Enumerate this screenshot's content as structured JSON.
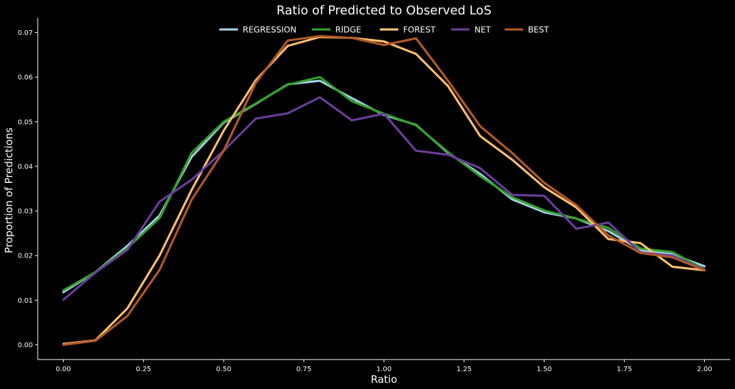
{
  "chart_data": {
    "type": "line",
    "title": "Ratio of Predicted to Observed LoS",
    "xlabel": "Ratio",
    "ylabel": "Proportion of Predictions",
    "xlim": [
      -0.08,
      2.08
    ],
    "ylim": [
      -0.0033,
      0.0733
    ],
    "xticks": [
      0.0,
      0.25,
      0.5,
      0.75,
      1.0,
      1.25,
      1.5,
      1.75,
      2.0
    ],
    "xtick_labels": [
      "0.00",
      "0.25",
      "0.50",
      "0.75",
      "1.00",
      "1.25",
      "1.50",
      "1.75",
      "2.00"
    ],
    "yticks": [
      0.0,
      0.01,
      0.02,
      0.03,
      0.04,
      0.05,
      0.06,
      0.07
    ],
    "ytick_labels": [
      "0.00",
      "0.01",
      "0.02",
      "0.03",
      "0.04",
      "0.05",
      "0.06",
      "0.07"
    ],
    "grid": false,
    "legend_position": "top-center",
    "x": [
      0.0,
      0.1,
      0.2,
      0.3,
      0.4,
      0.5,
      0.6,
      0.7,
      0.8,
      0.9,
      1.0,
      1.1,
      1.2,
      1.3,
      1.4,
      1.5,
      1.6,
      1.7,
      1.8,
      1.9,
      2.0
    ],
    "series": [
      {
        "name": "REGRESSION",
        "color": "#a6cee3",
        "values": [
          0.0118,
          0.0163,
          0.0222,
          0.029,
          0.0421,
          0.0498,
          0.054,
          0.0584,
          0.0592,
          0.0553,
          0.0515,
          0.0493,
          0.043,
          0.0383,
          0.0326,
          0.0297,
          0.0283,
          0.0255,
          0.0212,
          0.0203,
          0.0176
        ]
      },
      {
        "name": "RIDGE",
        "color": "#33a02c",
        "values": [
          0.0122,
          0.0163,
          0.0217,
          0.0284,
          0.043,
          0.05,
          0.0541,
          0.0583,
          0.06,
          0.0546,
          0.0518,
          0.0492,
          0.0432,
          0.0378,
          0.0331,
          0.0301,
          0.0283,
          0.0262,
          0.0216,
          0.0208,
          0.0169
        ]
      },
      {
        "name": "FOREST",
        "color": "#fdbf6f",
        "values": [
          0.0002,
          0.001,
          0.0082,
          0.02,
          0.0347,
          0.048,
          0.0593,
          0.067,
          0.069,
          0.0688,
          0.068,
          0.0652,
          0.058,
          0.0468,
          0.0415,
          0.0353,
          0.0308,
          0.0237,
          0.0228,
          0.0175,
          0.0167
        ]
      },
      {
        "name": "NET",
        "color": "#6a3d9a",
        "values": [
          0.0101,
          0.0162,
          0.0213,
          0.0321,
          0.037,
          0.0435,
          0.0507,
          0.0519,
          0.0555,
          0.0503,
          0.0518,
          0.0435,
          0.0426,
          0.0396,
          0.0336,
          0.0334,
          0.026,
          0.0274,
          0.0207,
          0.02,
          0.0168
        ]
      },
      {
        "name": "BEST",
        "color": "#b15928",
        "values": [
          0.0,
          0.0009,
          0.0065,
          0.0168,
          0.0325,
          0.0435,
          0.0587,
          0.0682,
          0.0692,
          0.0688,
          0.0672,
          0.0687,
          0.0592,
          0.049,
          0.043,
          0.0363,
          0.0313,
          0.0245,
          0.0206,
          0.0196,
          0.0167
        ]
      }
    ]
  }
}
